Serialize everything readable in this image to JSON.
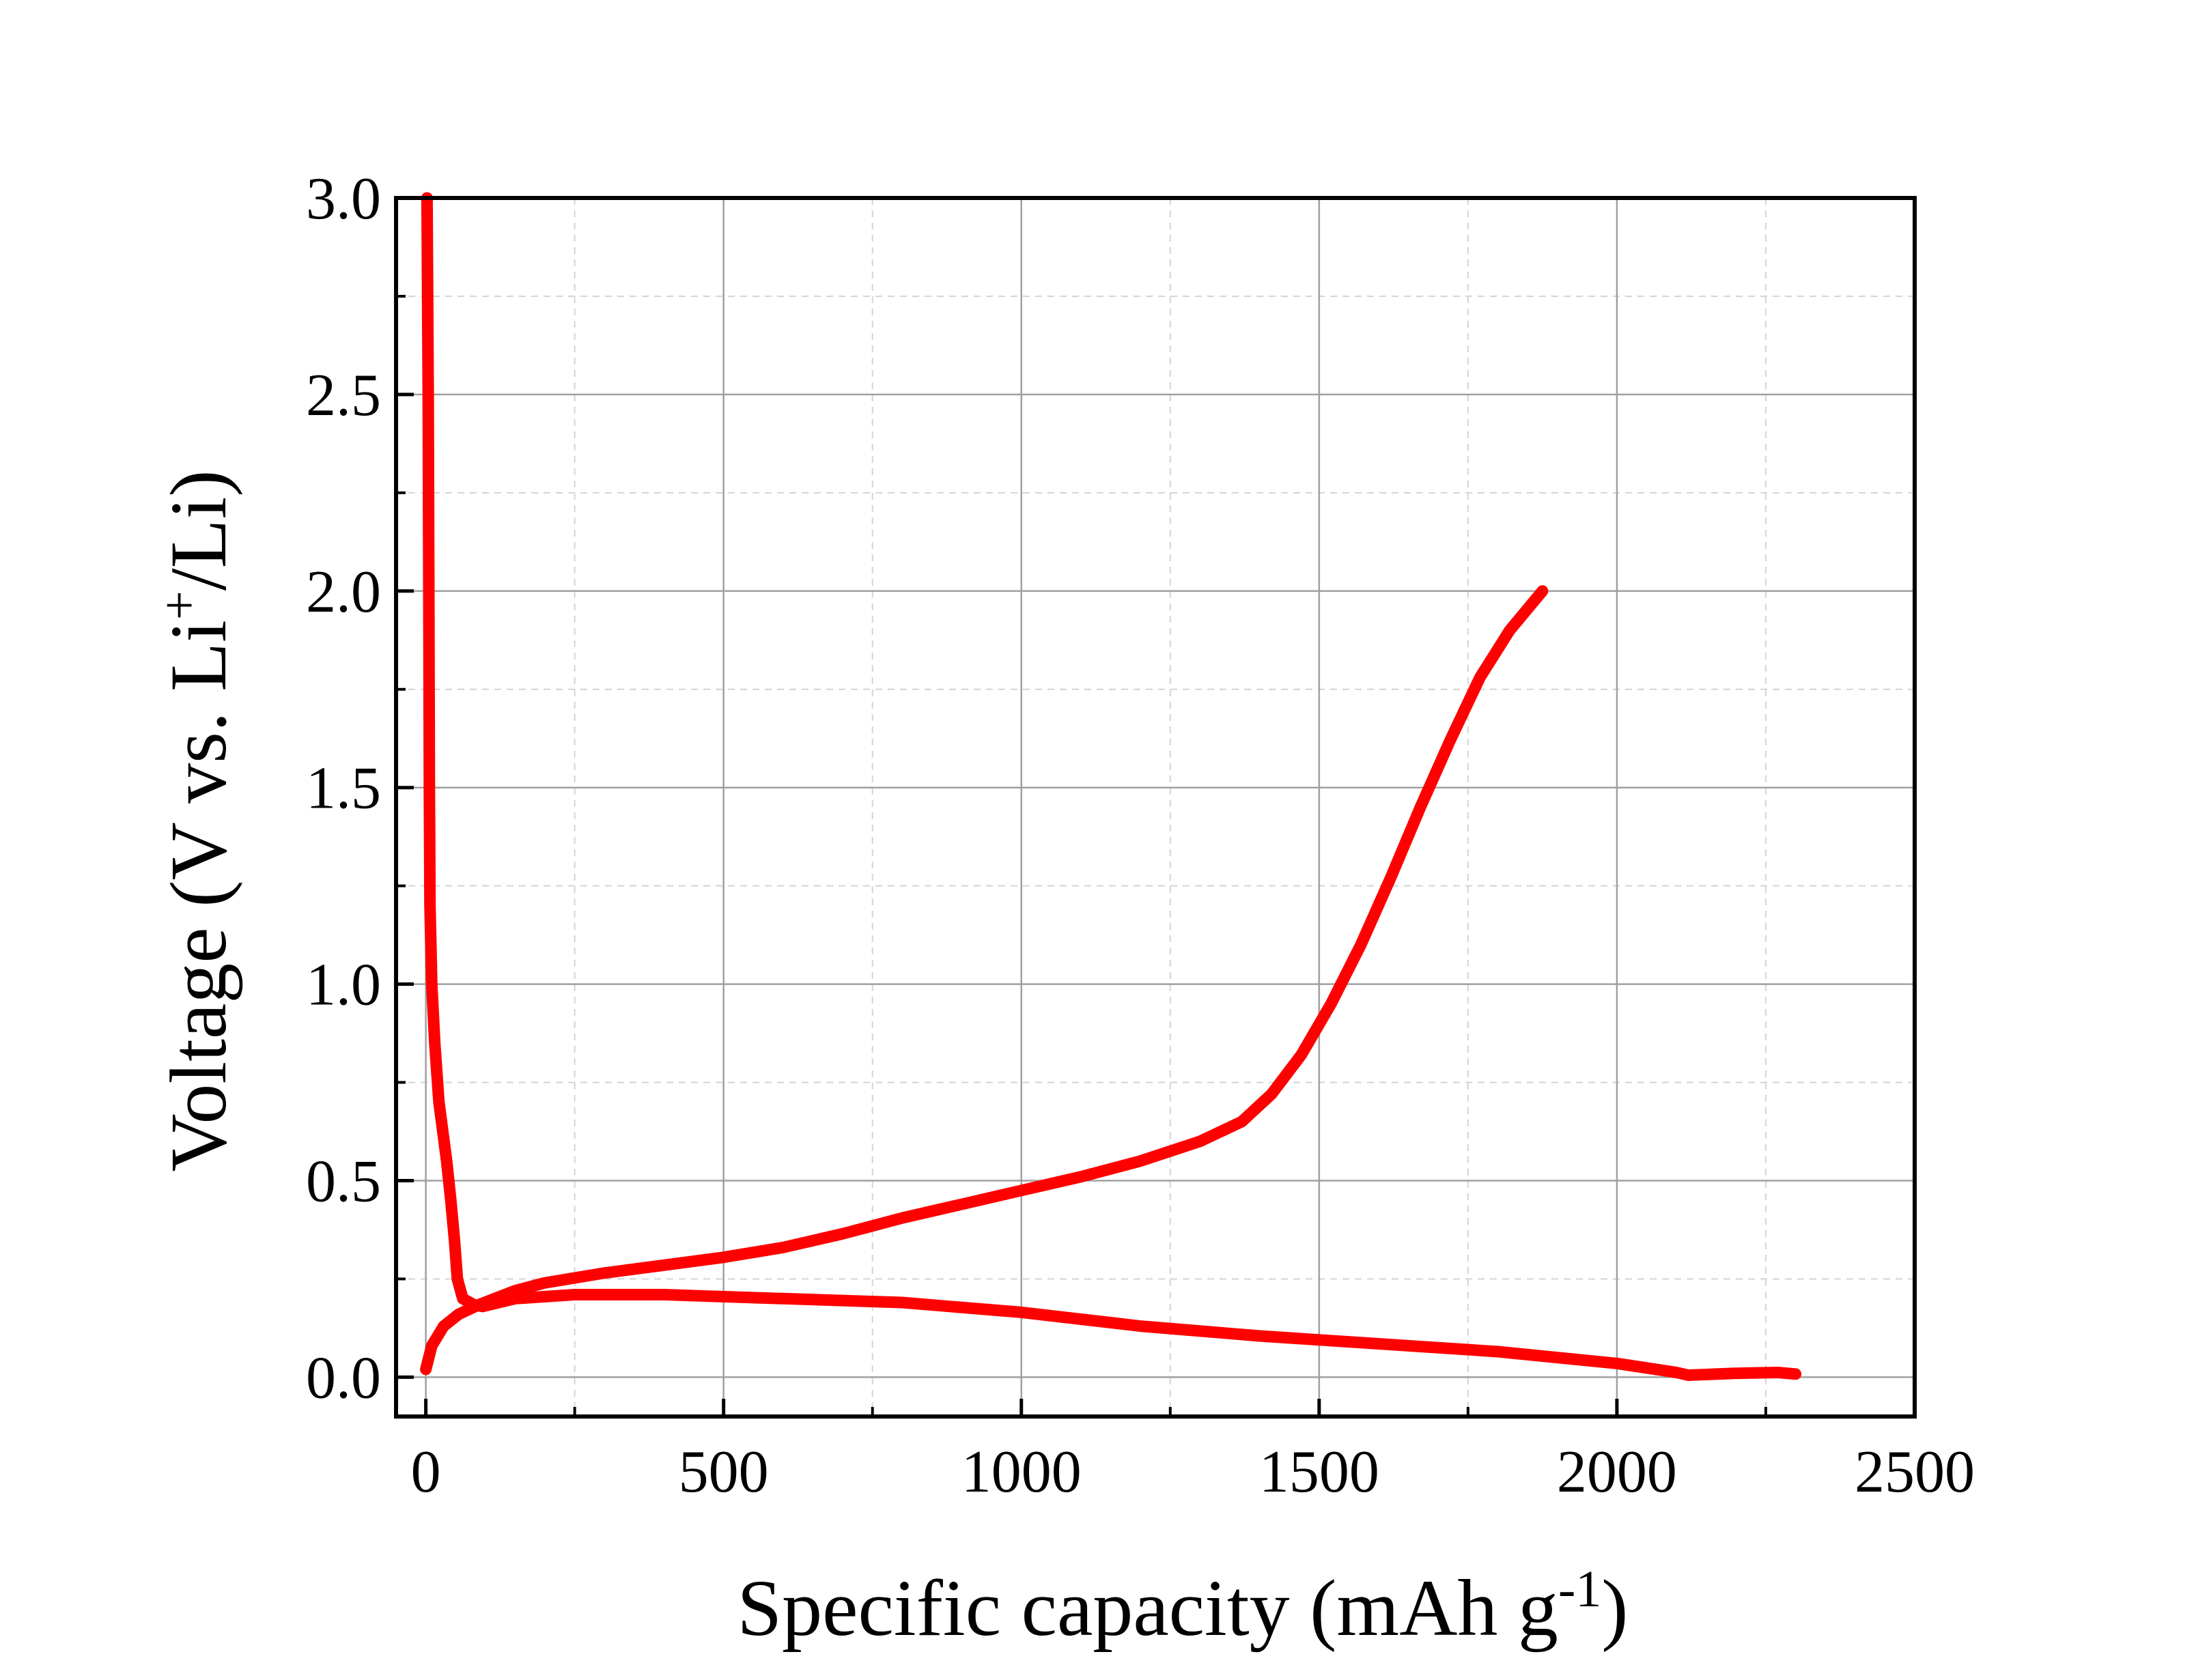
{
  "chart_data": {
    "type": "line",
    "xlabel": {
      "main": "Specific capacity (mAh g",
      "sup": "-1",
      "end": ")"
    },
    "ylabel": {
      "main": "Voltage (V vs. Li",
      "sup": "+",
      "end": "/Li)"
    },
    "xlim": [
      -50,
      2500
    ],
    "ylim": [
      -0.1,
      3.0
    ],
    "xticks": [
      0,
      500,
      1000,
      1500,
      2000,
      2500
    ],
    "xtick_labels": [
      "0",
      "500",
      "1000",
      "1500",
      "2000",
      "2500"
    ],
    "yticks": [
      0.0,
      0.5,
      1.0,
      1.5,
      2.0,
      2.5,
      3.0
    ],
    "ytick_labels": [
      "0.0",
      "0.5",
      "1.0",
      "1.5",
      "2.0",
      "2.5",
      "3.0"
    ],
    "grid": true,
    "minor_grid": true,
    "legend": false,
    "colors": {
      "series": "#ff0000",
      "major_grid": "#a0a0a0",
      "minor_grid": "#d4d4d4",
      "axes": "#000000"
    },
    "series": [
      {
        "color": "#ff0000",
        "points": [
          [
            2,
            3.0
          ],
          [
            4,
            2.5
          ],
          [
            5,
            2.0
          ],
          [
            6,
            1.5
          ],
          [
            7,
            1.2
          ],
          [
            10,
            1.0
          ],
          [
            15,
            0.85
          ],
          [
            22,
            0.7
          ],
          [
            35,
            0.55
          ],
          [
            42,
            0.45
          ],
          [
            48,
            0.35
          ],
          [
            53,
            0.25
          ],
          [
            62,
            0.2
          ],
          [
            80,
            0.185
          ],
          [
            95,
            0.18
          ],
          [
            150,
            0.2
          ],
          [
            250,
            0.21
          ],
          [
            400,
            0.21
          ],
          [
            600,
            0.2
          ],
          [
            800,
            0.19
          ],
          [
            880,
            0.18
          ],
          [
            1000,
            0.165
          ],
          [
            1200,
            0.13
          ],
          [
            1400,
            0.105
          ],
          [
            1600,
            0.085
          ],
          [
            1800,
            0.065
          ],
          [
            2000,
            0.035
          ],
          [
            2100,
            0.012
          ],
          [
            2120,
            0.005
          ],
          [
            2200,
            0.01
          ],
          [
            2270,
            0.012
          ],
          [
            2300,
            0.008
          ]
        ]
      },
      {
        "color": "#ff0000",
        "points": [
          [
            0,
            0.02
          ],
          [
            10,
            0.08
          ],
          [
            30,
            0.13
          ],
          [
            55,
            0.16
          ],
          [
            90,
            0.185
          ],
          [
            150,
            0.22
          ],
          [
            200,
            0.24
          ],
          [
            300,
            0.265
          ],
          [
            400,
            0.285
          ],
          [
            500,
            0.305
          ],
          [
            600,
            0.33
          ],
          [
            700,
            0.365
          ],
          [
            800,
            0.405
          ],
          [
            900,
            0.44
          ],
          [
            1000,
            0.475
          ],
          [
            1100,
            0.51
          ],
          [
            1200,
            0.55
          ],
          [
            1300,
            0.6
          ],
          [
            1370,
            0.65
          ],
          [
            1420,
            0.72
          ],
          [
            1470,
            0.82
          ],
          [
            1520,
            0.95
          ],
          [
            1570,
            1.1
          ],
          [
            1620,
            1.27
          ],
          [
            1670,
            1.45
          ],
          [
            1720,
            1.62
          ],
          [
            1770,
            1.78
          ],
          [
            1820,
            1.9
          ],
          [
            1875,
            2.0
          ]
        ]
      }
    ]
  }
}
